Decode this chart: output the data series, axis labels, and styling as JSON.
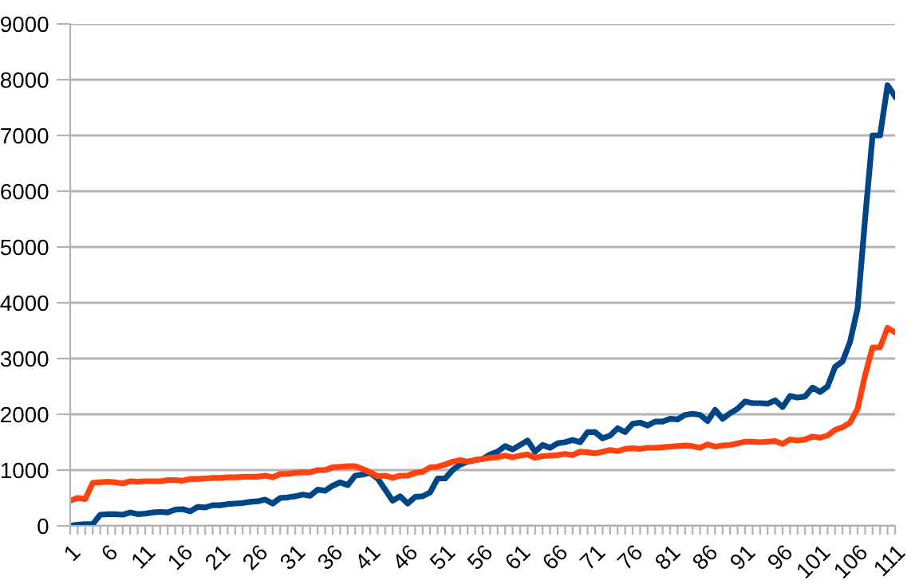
{
  "chart_data": {
    "type": "line",
    "categories": [
      "1",
      null,
      null,
      null,
      null,
      "6",
      null,
      null,
      null,
      null,
      "11",
      null,
      null,
      null,
      null,
      "16",
      null,
      null,
      null,
      null,
      "21",
      null,
      null,
      null,
      null,
      "26",
      null,
      null,
      null,
      null,
      "31",
      null,
      null,
      null,
      null,
      "36",
      null,
      null,
      null,
      null,
      "41",
      null,
      null,
      null,
      null,
      "46",
      null,
      null,
      null,
      null,
      "51",
      null,
      null,
      null,
      null,
      "56",
      null,
      null,
      null,
      null,
      "61",
      null,
      null,
      null,
      null,
      "66",
      null,
      null,
      null,
      null,
      "71",
      null,
      null,
      null,
      null,
      "76",
      null,
      null,
      null,
      null,
      "81",
      null,
      null,
      null,
      null,
      "86",
      null,
      null,
      null,
      null,
      "91",
      null,
      null,
      null,
      null,
      "96",
      null,
      null,
      null,
      null,
      "101",
      null,
      null,
      null,
      null,
      "106",
      null,
      null,
      null,
      null,
      "111"
    ],
    "series": [
      {
        "color": "#004586",
        "values": [
          0,
          20,
          30,
          30,
          200,
          210,
          210,
          200,
          240,
          210,
          220,
          240,
          250,
          240,
          290,
          300,
          260,
          340,
          330,
          370,
          370,
          390,
          400,
          410,
          430,
          440,
          470,
          400,
          500,
          510,
          530,
          560,
          540,
          650,
          630,
          720,
          780,
          730,
          900,
          920,
          950,
          850,
          650,
          450,
          530,
          400,
          520,
          530,
          600,
          850,
          850,
          1000,
          1100,
          1150,
          1180,
          1200,
          1280,
          1330,
          1430,
          1370,
          1450,
          1530,
          1330,
          1450,
          1400,
          1480,
          1500,
          1540,
          1500,
          1680,
          1680,
          1570,
          1620,
          1750,
          1680,
          1830,
          1850,
          1800,
          1870,
          1870,
          1920,
          1910,
          1990,
          2010,
          1990,
          1880,
          2080,
          1920,
          2020,
          2100,
          2230,
          2200,
          2200,
          2190,
          2250,
          2130,
          2330,
          2300,
          2320,
          2480,
          2400,
          2500,
          2850,
          2950,
          3300,
          3900,
          5500,
          7000,
          7000,
          7900,
          7700
        ]
      },
      {
        "color": "#ff420e",
        "values": [
          450,
          500,
          480,
          770,
          780,
          790,
          780,
          760,
          800,
          790,
          800,
          800,
          800,
          820,
          820,
          810,
          840,
          840,
          850,
          860,
          860,
          870,
          870,
          880,
          880,
          880,
          900,
          870,
          930,
          930,
          950,
          960,
          960,
          1000,
          1000,
          1050,
          1060,
          1070,
          1070,
          1020,
          960,
          890,
          900,
          860,
          900,
          900,
          950,
          970,
          1050,
          1060,
          1100,
          1150,
          1180,
          1150,
          1180,
          1200,
          1220,
          1230,
          1260,
          1230,
          1260,
          1280,
          1220,
          1250,
          1260,
          1270,
          1290,
          1270,
          1330,
          1320,
          1300,
          1330,
          1360,
          1340,
          1380,
          1390,
          1380,
          1400,
          1400,
          1410,
          1420,
          1430,
          1440,
          1430,
          1400,
          1460,
          1420,
          1440,
          1450,
          1480,
          1510,
          1510,
          1500,
          1510,
          1520,
          1470,
          1550,
          1530,
          1550,
          1600,
          1580,
          1620,
          1720,
          1770,
          1850,
          2100,
          2700,
          3200,
          3200,
          3550,
          3470
        ]
      }
    ],
    "ylim": [
      0,
      9000
    ],
    "yticks": [
      0,
      1000,
      2000,
      3000,
      4000,
      5000,
      6000,
      7000,
      8000,
      9000
    ],
    "grid": "y",
    "legend": false,
    "marker": "none",
    "line_style": "solid"
  }
}
